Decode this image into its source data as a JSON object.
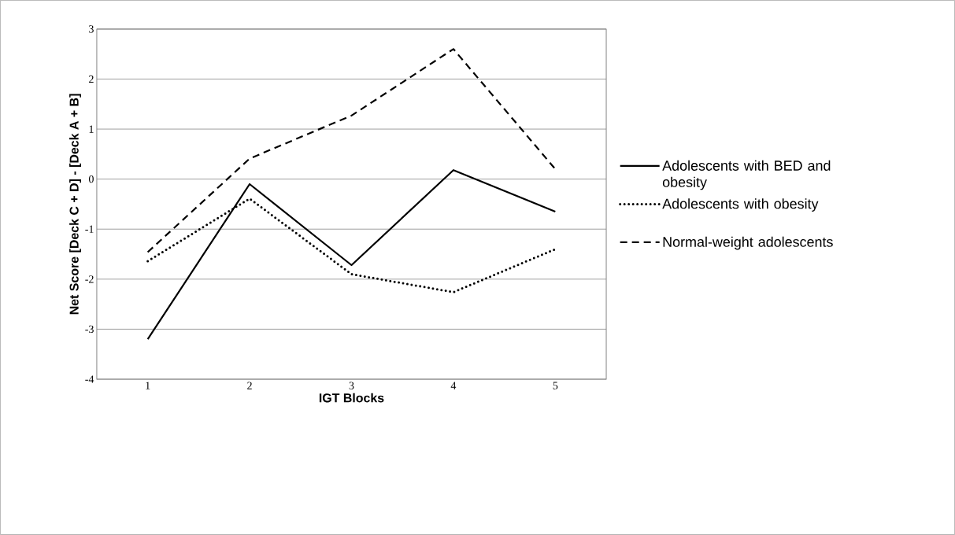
{
  "chart_data": {
    "type": "line",
    "xlabel": "IGT Blocks",
    "ylabel": "Net Score [Deck C + D] - [Deck A + B]",
    "categories": [
      "1",
      "2",
      "3",
      "4",
      "5"
    ],
    "series": [
      {
        "name": "Adolescents with BED and obesity",
        "color": "#000000",
        "line_style": "solid",
        "values": [
          -3.2,
          -0.1,
          -1.72,
          0.18,
          -0.65
        ]
      },
      {
        "name": "Adolescents with obesity",
        "color": "#000000",
        "line_style": "dotted",
        "values": [
          -1.64,
          -0.39,
          -1.9,
          -2.26,
          -1.4
        ]
      },
      {
        "name": "Normal-weight adolescents",
        "color": "#000000",
        "line_style": "dashed",
        "values": [
          -1.46,
          0.41,
          1.27,
          2.6,
          0.2
        ]
      }
    ],
    "ylim": [
      -4,
      3
    ],
    "yticks": [
      -4,
      -3,
      -2,
      -1,
      0,
      1,
      2,
      3
    ],
    "grid": "y",
    "legend": "right",
    "marker": "none"
  }
}
